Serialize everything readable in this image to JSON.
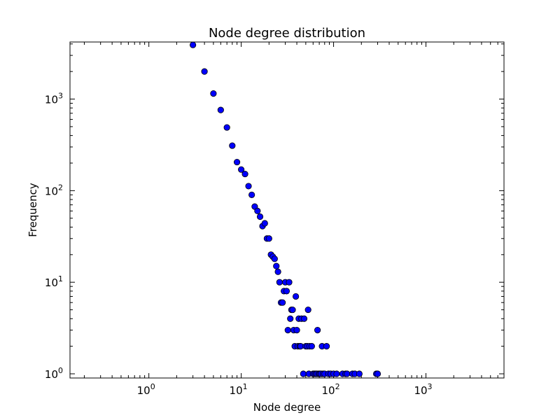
{
  "chart_data": {
    "type": "scatter",
    "title": "Node degree distribution",
    "xlabel": "Node degree",
    "ylabel": "Frequency",
    "x_scale": "log",
    "y_scale": "log",
    "xlim": [
      0.14,
      7000
    ],
    "ylim": [
      0.9,
      4200
    ],
    "grid": false,
    "legend": "none",
    "colors": {
      "marker_fill": "#0000ff",
      "marker_edge": "#000000",
      "axes": "#000000"
    },
    "x_ticks": [
      {
        "value": 1,
        "base": "10",
        "exp": "0"
      },
      {
        "value": 10,
        "base": "10",
        "exp": "1"
      },
      {
        "value": 100,
        "base": "10",
        "exp": "2"
      },
      {
        "value": 1000,
        "base": "10",
        "exp": "3"
      }
    ],
    "y_ticks": [
      {
        "value": 1,
        "base": "10",
        "exp": "0"
      },
      {
        "value": 10,
        "base": "10",
        "exp": "1"
      },
      {
        "value": 100,
        "base": "10",
        "exp": "2"
      },
      {
        "value": 1000,
        "base": "10",
        "exp": "3"
      }
    ],
    "points": [
      {
        "x": 3,
        "y": 3900
      },
      {
        "x": 4,
        "y": 2000
      },
      {
        "x": 5,
        "y": 1150
      },
      {
        "x": 6,
        "y": 760
      },
      {
        "x": 7,
        "y": 490
      },
      {
        "x": 8,
        "y": 310
      },
      {
        "x": 9,
        "y": 205
      },
      {
        "x": 10,
        "y": 170
      },
      {
        "x": 11,
        "y": 152
      },
      {
        "x": 12,
        "y": 112
      },
      {
        "x": 13,
        "y": 90
      },
      {
        "x": 14,
        "y": 67
      },
      {
        "x": 15,
        "y": 60
      },
      {
        "x": 16,
        "y": 52
      },
      {
        "x": 17,
        "y": 41
      },
      {
        "x": 18,
        "y": 44
      },
      {
        "x": 19,
        "y": 30
      },
      {
        "x": 20,
        "y": 30
      },
      {
        "x": 21,
        "y": 20
      },
      {
        "x": 22,
        "y": 19
      },
      {
        "x": 23,
        "y": 18
      },
      {
        "x": 24,
        "y": 15
      },
      {
        "x": 25,
        "y": 13
      },
      {
        "x": 26,
        "y": 10
      },
      {
        "x": 27,
        "y": 6
      },
      {
        "x": 28,
        "y": 6
      },
      {
        "x": 29,
        "y": 8
      },
      {
        "x": 30,
        "y": 10
      },
      {
        "x": 31,
        "y": 8
      },
      {
        "x": 32,
        "y": 3
      },
      {
        "x": 33,
        "y": 10
      },
      {
        "x": 34,
        "y": 4
      },
      {
        "x": 35,
        "y": 5
      },
      {
        "x": 36,
        "y": 5
      },
      {
        "x": 37,
        "y": 3
      },
      {
        "x": 38,
        "y": 2
      },
      {
        "x": 39,
        "y": 7
      },
      {
        "x": 40,
        "y": 3
      },
      {
        "x": 41,
        "y": 2
      },
      {
        "x": 42,
        "y": 4
      },
      {
        "x": 43,
        "y": 2
      },
      {
        "x": 44,
        "y": 2
      },
      {
        "x": 45,
        "y": 4
      },
      {
        "x": 47,
        "y": 1
      },
      {
        "x": 48,
        "y": 4
      },
      {
        "x": 50,
        "y": 2
      },
      {
        "x": 52,
        "y": 2
      },
      {
        "x": 53,
        "y": 5
      },
      {
        "x": 54,
        "y": 1
      },
      {
        "x": 55,
        "y": 2
      },
      {
        "x": 58,
        "y": 2
      },
      {
        "x": 60,
        "y": 1
      },
      {
        "x": 62,
        "y": 1
      },
      {
        "x": 64,
        "y": 1
      },
      {
        "x": 66,
        "y": 1
      },
      {
        "x": 67,
        "y": 3
      },
      {
        "x": 69,
        "y": 1
      },
      {
        "x": 71,
        "y": 1
      },
      {
        "x": 73,
        "y": 1
      },
      {
        "x": 75,
        "y": 2
      },
      {
        "x": 77,
        "y": 1
      },
      {
        "x": 80,
        "y": 1
      },
      {
        "x": 84,
        "y": 2
      },
      {
        "x": 88,
        "y": 1
      },
      {
        "x": 93,
        "y": 1
      },
      {
        "x": 100,
        "y": 1
      },
      {
        "x": 108,
        "y": 1
      },
      {
        "x": 125,
        "y": 1
      },
      {
        "x": 135,
        "y": 1
      },
      {
        "x": 140,
        "y": 1
      },
      {
        "x": 160,
        "y": 1
      },
      {
        "x": 170,
        "y": 1
      },
      {
        "x": 190,
        "y": 1
      },
      {
        "x": 290,
        "y": 1
      },
      {
        "x": 300,
        "y": 1
      }
    ]
  }
}
